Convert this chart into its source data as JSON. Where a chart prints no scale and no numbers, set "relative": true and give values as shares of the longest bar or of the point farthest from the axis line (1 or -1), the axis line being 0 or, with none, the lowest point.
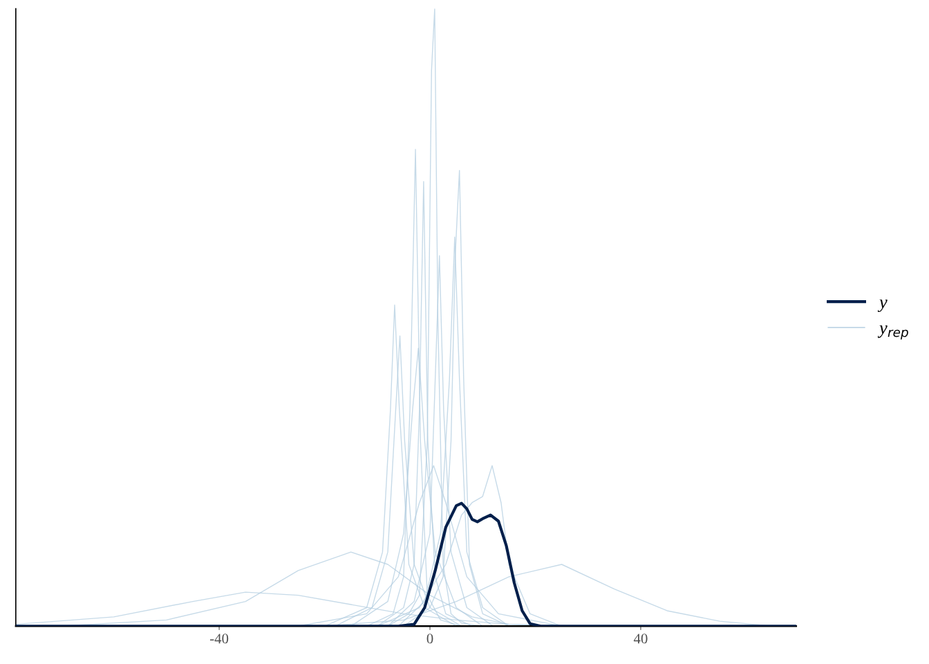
{
  "chart_data": {
    "type": "line",
    "relative": true,
    "xlim": [
      -78.6,
      69.5
    ],
    "xticks": [
      -40,
      0,
      40
    ],
    "tick_labels": "x",
    "grid": false,
    "legend": "right",
    "marker": "none",
    "line_style": "solid",
    "series": [
      {
        "name": "y",
        "color": "#011f4b",
        "x": [
          -78.6,
          -6,
          -3,
          -1,
          1,
          3,
          5,
          6,
          7,
          8,
          9,
          10,
          11.5,
          13,
          14.5,
          16,
          17.5,
          19,
          21,
          69.5
        ],
        "values": [
          0,
          0,
          0.003,
          0.03,
          0.09,
          0.16,
          0.195,
          0.199,
          0.19,
          0.173,
          0.169,
          0.174,
          0.18,
          0.17,
          0.13,
          0.07,
          0.025,
          0.004,
          0,
          0
        ]
      },
      {
        "name": "y$_{rep}$",
        "color": "#b3cde0",
        "x": [
          -8,
          -4,
          -2,
          -0.5,
          0.3,
          0.9,
          1.5,
          2.5,
          4,
          6,
          10
        ],
        "values": [
          0,
          0.02,
          0.05,
          0.3,
          0.9,
          1.0,
          0.5,
          0.1,
          0.02,
          0.005,
          0
        ]
      },
      {
        "color": "#b3cde0",
        "x": [
          -12,
          -7,
          -5,
          -3.8,
          -2.75,
          -1.8,
          -0.5,
          2,
          6
        ],
        "values": [
          0,
          0.02,
          0.08,
          0.35,
          0.772,
          0.3,
          0.05,
          0.01,
          0
        ]
      },
      {
        "color": "#b3cde0",
        "x": [
          -10,
          -5,
          -3,
          -2,
          -1.2,
          -0.4,
          1,
          3,
          8
        ],
        "values": [
          0,
          0.03,
          0.1,
          0.35,
          0.72,
          0.3,
          0.08,
          0.02,
          0
        ]
      },
      {
        "color": "#b3cde0",
        "x": [
          -5,
          0,
          2.5,
          4,
          4.8,
          5.6,
          6.4,
          7.5,
          10,
          15
        ],
        "values": [
          0,
          0.03,
          0.08,
          0.3,
          0.6,
          0.738,
          0.4,
          0.1,
          0.02,
          0
        ]
      },
      {
        "color": "#b3cde0",
        "x": [
          -20,
          -12,
          -9,
          -7.5,
          -6.7,
          -5.8,
          -4,
          -1,
          5
        ],
        "values": [
          0,
          0.03,
          0.12,
          0.35,
          0.52,
          0.35,
          0.1,
          0.03,
          0
        ]
      },
      {
        "color": "#b3cde0",
        "x": [
          -8,
          -3,
          0,
          1,
          1.8,
          2.6,
          4,
          7,
          12
        ],
        "values": [
          0,
          0.04,
          0.15,
          0.4,
          0.6,
          0.35,
          0.12,
          0.03,
          0
        ]
      },
      {
        "color": "#b3cde0",
        "x": [
          -6,
          -1,
          2,
          3.7,
          4.7,
          5.6,
          7,
          10,
          15
        ],
        "values": [
          0,
          0.04,
          0.15,
          0.4,
          0.63,
          0.4,
          0.12,
          0.03,
          0
        ]
      },
      {
        "color": "#b3cde0",
        "x": [
          -18,
          -11,
          -8,
          -6.5,
          -5.7,
          -4.8,
          -3,
          0,
          6
        ],
        "values": [
          0,
          0.03,
          0.12,
          0.35,
          0.47,
          0.3,
          0.1,
          0.03,
          0
        ]
      },
      {
        "color": "#b3cde0",
        "x": [
          -15,
          -8,
          -5,
          -3.3,
          -2.2,
          -1,
          1,
          5,
          10
        ],
        "values": [
          0,
          0.04,
          0.15,
          0.35,
          0.45,
          0.3,
          0.12,
          0.03,
          0
        ]
      },
      {
        "color": "#b3cde0",
        "x": [
          -10,
          -2,
          3,
          6,
          8,
          10,
          11.8,
          13.5,
          15,
          19,
          25
        ],
        "values": [
          0,
          0.03,
          0.1,
          0.18,
          0.2,
          0.21,
          0.26,
          0.2,
          0.1,
          0.02,
          0
        ]
      },
      {
        "color": "#b3cde0",
        "x": [
          -70,
          -50,
          -35,
          -25,
          -15,
          -8,
          0,
          8,
          15,
          25
        ],
        "values": [
          0,
          0.01,
          0.04,
          0.09,
          0.12,
          0.1,
          0.05,
          0.015,
          0.003,
          0
        ]
      },
      {
        "color": "#b3cde0",
        "x": [
          -20,
          -5,
          5,
          15,
          25,
          35,
          45,
          55,
          65
        ],
        "values": [
          0,
          0.01,
          0.04,
          0.08,
          0.1,
          0.06,
          0.025,
          0.008,
          0
        ]
      },
      {
        "color": "#b3cde0",
        "x": [
          -78.6,
          -60,
          -45,
          -35,
          -25,
          -15,
          -5,
          5,
          15,
          30
        ],
        "values": [
          0.003,
          0.015,
          0.04,
          0.055,
          0.05,
          0.035,
          0.02,
          0.01,
          0.003,
          0
        ]
      },
      {
        "color": "#b3cde0",
        "x": [
          -25,
          -12,
          -6,
          -2,
          0.7,
          3,
          7,
          13,
          25
        ],
        "values": [
          0,
          0.02,
          0.08,
          0.2,
          0.26,
          0.2,
          0.08,
          0.02,
          0
        ]
      }
    ]
  }
}
